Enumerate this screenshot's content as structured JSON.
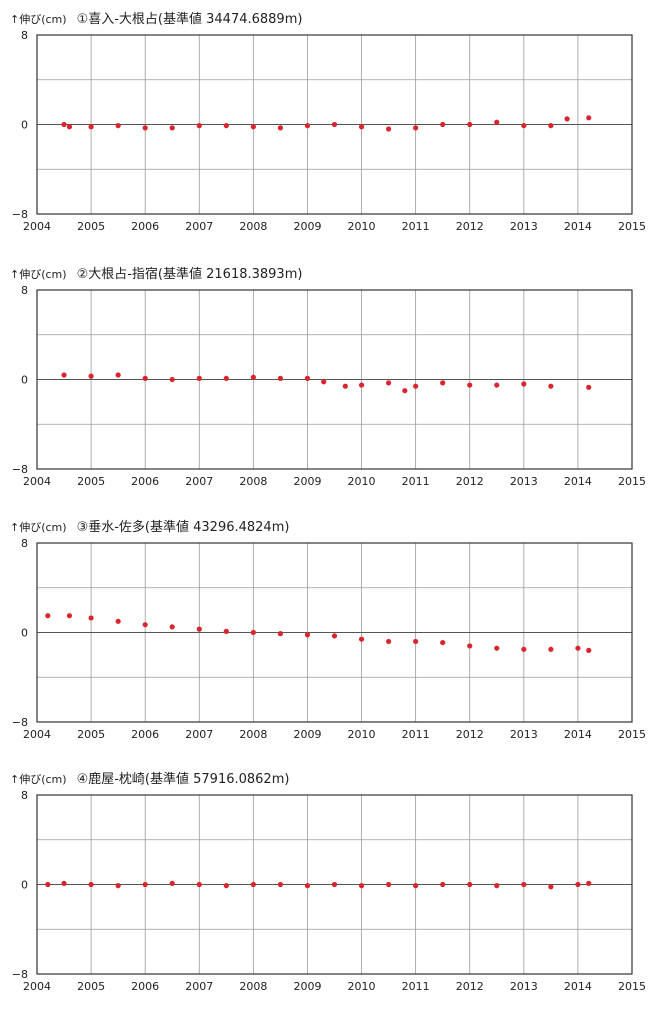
{
  "chart_data": [
    {
      "type": "scatter",
      "ylabel": "↑伸び(cm)",
      "title": "①喜入-大根占(基準値 34474.6889m)",
      "xlim": [
        2004,
        2015
      ],
      "ylim": [
        -8,
        8
      ],
      "x_ticks": [
        "2004",
        "2005",
        "2006",
        "2007",
        "2008",
        "2009",
        "2010",
        "2011",
        "2012",
        "2013",
        "2014",
        "2015"
      ],
      "y_ticks": [
        "8",
        "0",
        "−8"
      ],
      "grid": true,
      "marker_color": "#d9262e",
      "series": [
        {
          "x": [
            2004.5,
            2004.6,
            2005.0,
            2005.5,
            2006.0,
            2006.5,
            2007.0,
            2007.5,
            2008.0,
            2008.5,
            2009.0,
            2009.5,
            2010.0,
            2010.5,
            2011.0,
            2011.5,
            2012.0,
            2012.5,
            2013.0,
            2013.5,
            2013.8,
            2014.2
          ],
          "y": [
            0.0,
            -0.2,
            -0.2,
            -0.1,
            -0.3,
            -0.3,
            -0.1,
            -0.1,
            -0.2,
            -0.3,
            -0.1,
            0.0,
            -0.2,
            -0.4,
            -0.3,
            0.0,
            0.0,
            0.2,
            -0.1,
            -0.1,
            0.5,
            0.6
          ]
        }
      ]
    },
    {
      "type": "scatter",
      "ylabel": "↑伸び(cm)",
      "title": "②大根占-指宿(基準値 21618.3893m)",
      "xlim": [
        2004,
        2015
      ],
      "ylim": [
        -8,
        8
      ],
      "x_ticks": [
        "2004",
        "2005",
        "2006",
        "2007",
        "2008",
        "2009",
        "2010",
        "2011",
        "2012",
        "2013",
        "2014",
        "2015"
      ],
      "y_ticks": [
        "8",
        "0",
        "−8"
      ],
      "grid": true,
      "marker_color": "#d9262e",
      "series": [
        {
          "x": [
            2004.5,
            2005.0,
            2005.5,
            2006.0,
            2006.5,
            2007.0,
            2007.5,
            2008.0,
            2008.5,
            2009.0,
            2009.3,
            2009.7,
            2010.0,
            2010.5,
            2010.8,
            2011.0,
            2011.5,
            2012.0,
            2012.5,
            2013.0,
            2013.5,
            2014.2
          ],
          "y": [
            0.4,
            0.3,
            0.4,
            0.1,
            0.0,
            0.1,
            0.1,
            0.2,
            0.1,
            0.1,
            -0.2,
            -0.6,
            -0.5,
            -0.3,
            -1.0,
            -0.6,
            -0.3,
            -0.5,
            -0.5,
            -0.4,
            -0.6,
            -0.7
          ]
        }
      ]
    },
    {
      "type": "scatter",
      "ylabel": "↑伸び(cm)",
      "title": "③垂水-佐多(基準値 43296.4824m)",
      "xlim": [
        2004,
        2015
      ],
      "ylim": [
        -8,
        8
      ],
      "x_ticks": [
        "2004",
        "2005",
        "2006",
        "2007",
        "2008",
        "2009",
        "2010",
        "2011",
        "2012",
        "2013",
        "2014",
        "2015"
      ],
      "y_ticks": [
        "8",
        "0",
        "−8"
      ],
      "grid": true,
      "marker_color": "#d9262e",
      "series": [
        {
          "x": [
            2004.2,
            2004.6,
            2005.0,
            2005.5,
            2006.0,
            2006.5,
            2007.0,
            2007.5,
            2008.0,
            2008.5,
            2009.0,
            2009.5,
            2010.0,
            2010.5,
            2011.0,
            2011.5,
            2012.0,
            2012.5,
            2013.0,
            2013.5,
            2014.0,
            2014.2
          ],
          "y": [
            1.5,
            1.5,
            1.3,
            1.0,
            0.7,
            0.5,
            0.3,
            0.1,
            0.0,
            -0.1,
            -0.2,
            -0.3,
            -0.6,
            -0.8,
            -0.8,
            -0.9,
            -1.2,
            -1.4,
            -1.5,
            -1.5,
            -1.4,
            -1.6
          ]
        }
      ]
    },
    {
      "type": "scatter",
      "ylabel": "↑伸び(cm)",
      "title": "④鹿屋-枕崎(基準値 57916.0862m)",
      "xlim": [
        2004,
        2015
      ],
      "ylim": [
        -8,
        8
      ],
      "x_ticks": [
        "2004",
        "2005",
        "2006",
        "2007",
        "2008",
        "2009",
        "2010",
        "2011",
        "2012",
        "2013",
        "2014",
        "2015"
      ],
      "y_ticks": [
        "8",
        "0",
        "−8"
      ],
      "grid": true,
      "marker_color": "#d9262e",
      "series": [
        {
          "x": [
            2004.2,
            2004.5,
            2005.0,
            2005.5,
            2006.0,
            2006.5,
            2007.0,
            2007.5,
            2008.0,
            2008.5,
            2009.0,
            2009.5,
            2010.0,
            2010.5,
            2011.0,
            2011.5,
            2012.0,
            2012.5,
            2013.0,
            2013.5,
            2014.0,
            2014.2
          ],
          "y": [
            0.0,
            0.1,
            0.0,
            -0.1,
            0.0,
            0.1,
            0.0,
            -0.1,
            0.0,
            0.0,
            -0.1,
            0.0,
            -0.1,
            0.0,
            -0.1,
            0.0,
            0.0,
            -0.1,
            0.0,
            -0.2,
            0.0,
            0.1
          ]
        }
      ]
    }
  ]
}
